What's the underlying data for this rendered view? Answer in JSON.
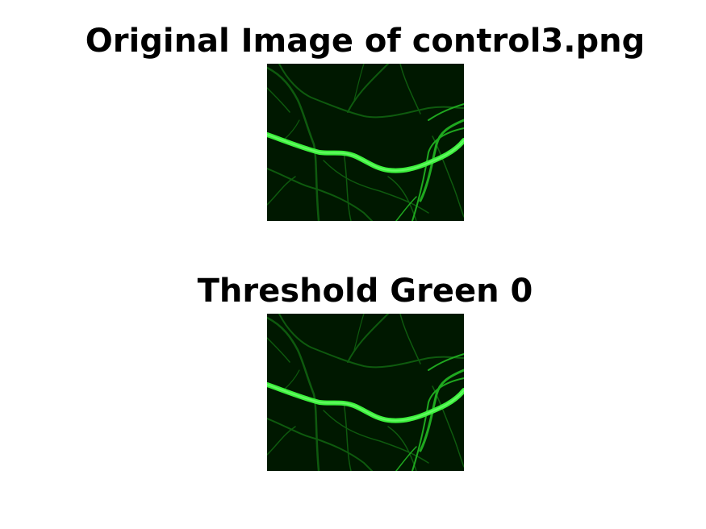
{
  "figure": {
    "original_title": "Original Image of control3.png",
    "threshold_title": "Threshold Green 0",
    "colors": {
      "background": "#001800",
      "vessel_bright": "#3cf03c",
      "vessel_mid": "#1fa81f",
      "vessel_dim": "#0e5a0e"
    }
  }
}
